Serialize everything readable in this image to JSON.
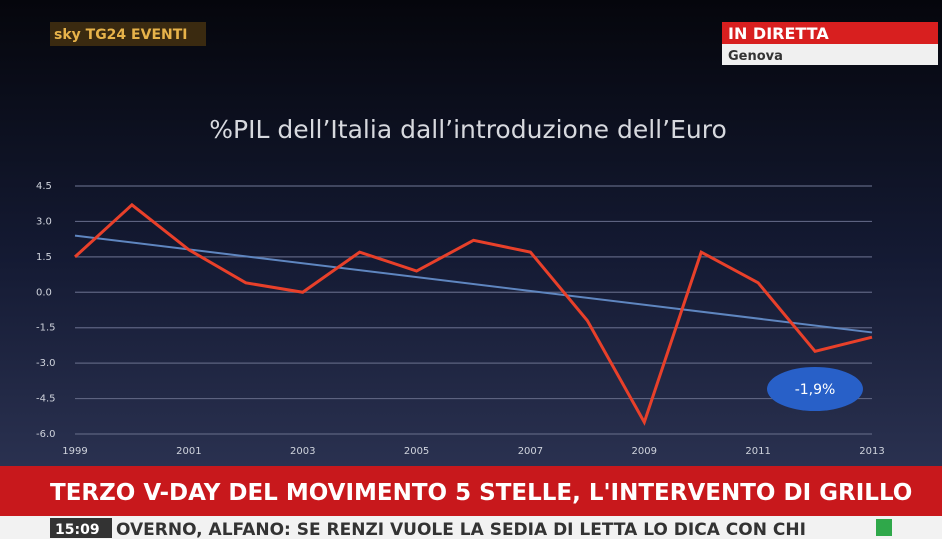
{
  "broadcast": {
    "logo": "sky TG24 EVENTI",
    "live": "IN DIRETTA",
    "location": "Genova",
    "headline": "TERZO V-DAY DEL MOVIMENTO 5 STELLE, L'INTERVENTO DI GRILLO",
    "time": "15:09",
    "ticker": "OVERNO, ALFANO: SE RENZI VUOLE LA SEDIA DI LETTA LO DICA CON CHI"
  },
  "chart_data": {
    "type": "line",
    "title": "%PIL dell’Italia dall’introduzione dell’Euro",
    "xlim": [
      1999,
      2013
    ],
    "xticks": [
      1999,
      2001,
      2003,
      2005,
      2007,
      2009,
      2011,
      2013
    ],
    "ylim": [
      -6,
      4.5
    ],
    "yticks": [
      4.5,
      {
        "value": 3,
        "label": "3.0"
      },
      1.5,
      {
        "value": 0,
        "label": "0.0"
      },
      -1.5,
      {
        "value": -3,
        "label": "-3.0"
      },
      -4.5,
      {
        "value": -6,
        "label": "-6.0"
      }
    ],
    "grid": true,
    "series": [
      {
        "color": "#e8402a",
        "x": [
          1999,
          2000,
          2001,
          2002,
          2003,
          2004,
          2005,
          2006,
          2007,
          2008,
          2009,
          2010,
          2011,
          2012,
          2013
        ],
        "values": [
          1.5,
          3.7,
          1.8,
          0.4,
          0.0,
          1.7,
          0.9,
          2.2,
          1.7,
          -1.2,
          -5.5,
          1.7,
          0.4,
          -2.5,
          -1.9
        ]
      },
      {
        "color": "#5f86c0",
        "x": [
          1999,
          2013
        ],
        "values": [
          2.4,
          -1.7
        ]
      }
    ],
    "annotation": "-1,9%"
  }
}
